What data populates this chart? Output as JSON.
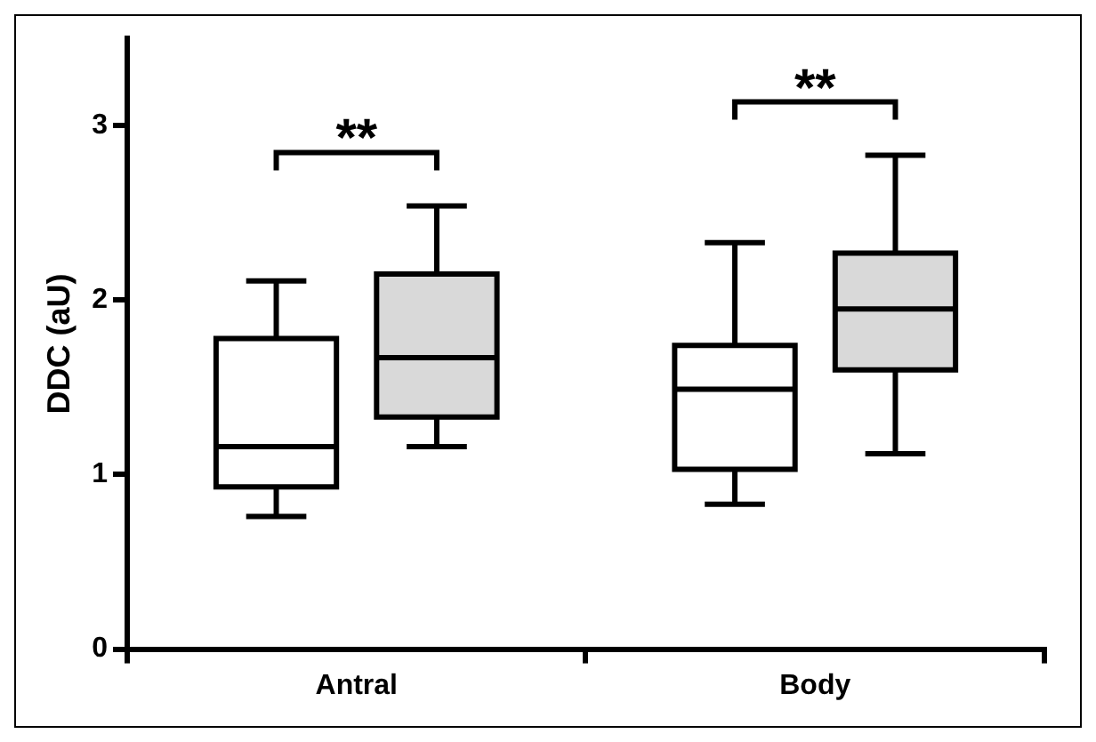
{
  "chart_data": {
    "type": "box",
    "ylabel": "DDC (aU)",
    "categories": [
      "Antral",
      "Body"
    ],
    "series": [
      {
        "color": "#ffffff",
        "boxes": [
          {
            "low": 0.76,
            "q1": 0.93,
            "median": 1.16,
            "q3": 1.78,
            "high": 2.11
          },
          {
            "low": 0.83,
            "q1": 1.03,
            "median": 1.49,
            "q3": 1.74,
            "high": 2.33
          }
        ]
      },
      {
        "color": "#d9d9d9",
        "boxes": [
          {
            "low": 1.16,
            "q1": 1.33,
            "median": 1.67,
            "q3": 2.15,
            "high": 2.54
          },
          {
            "low": 1.12,
            "q1": 1.6,
            "median": 1.95,
            "q3": 2.27,
            "high": 2.83
          }
        ]
      }
    ],
    "ylim": [
      0,
      3.5
    ],
    "yticks": [
      0,
      1,
      2,
      3
    ],
    "annotations": [
      "**",
      "**"
    ]
  }
}
